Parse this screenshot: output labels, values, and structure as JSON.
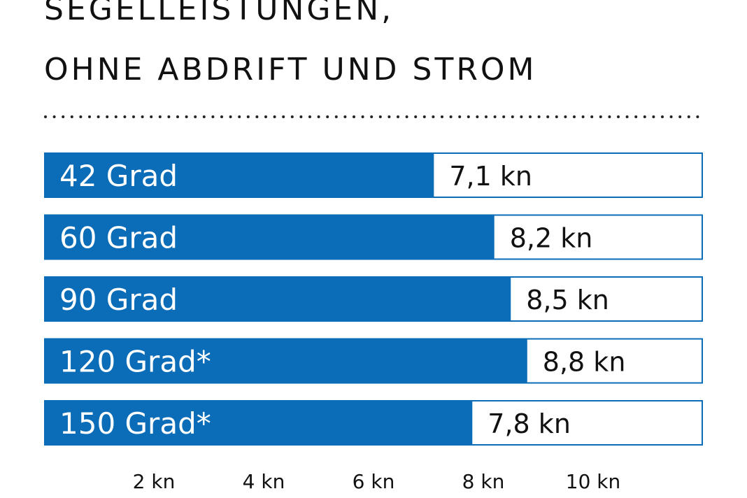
{
  "chart_data": {
    "type": "hbar",
    "title": [
      "SEGELLEISTUNGEN,",
      "OHNE ABDRIFT UND STROM"
    ],
    "categories": [
      "42 Grad",
      "60 Grad",
      "90 Grad",
      "120 Grad*",
      "150 Grad*"
    ],
    "values": [
      7.1,
      8.2,
      8.5,
      8.8,
      7.8
    ],
    "value_labels": [
      "7,1 kn",
      "8,2 kn",
      "8,5 kn",
      "8,8 kn",
      "7,8 kn"
    ],
    "color": "#0b6cb8",
    "xlim": [
      0,
      12
    ],
    "xticks": [
      {
        "value": 2,
        "label": "2 kn"
      },
      {
        "value": 4,
        "label": "4 kn"
      },
      {
        "value": 6,
        "label": "6 kn"
      },
      {
        "value": 8,
        "label": "8 kn"
      },
      {
        "value": 10,
        "label": "10 kn"
      }
    ]
  }
}
